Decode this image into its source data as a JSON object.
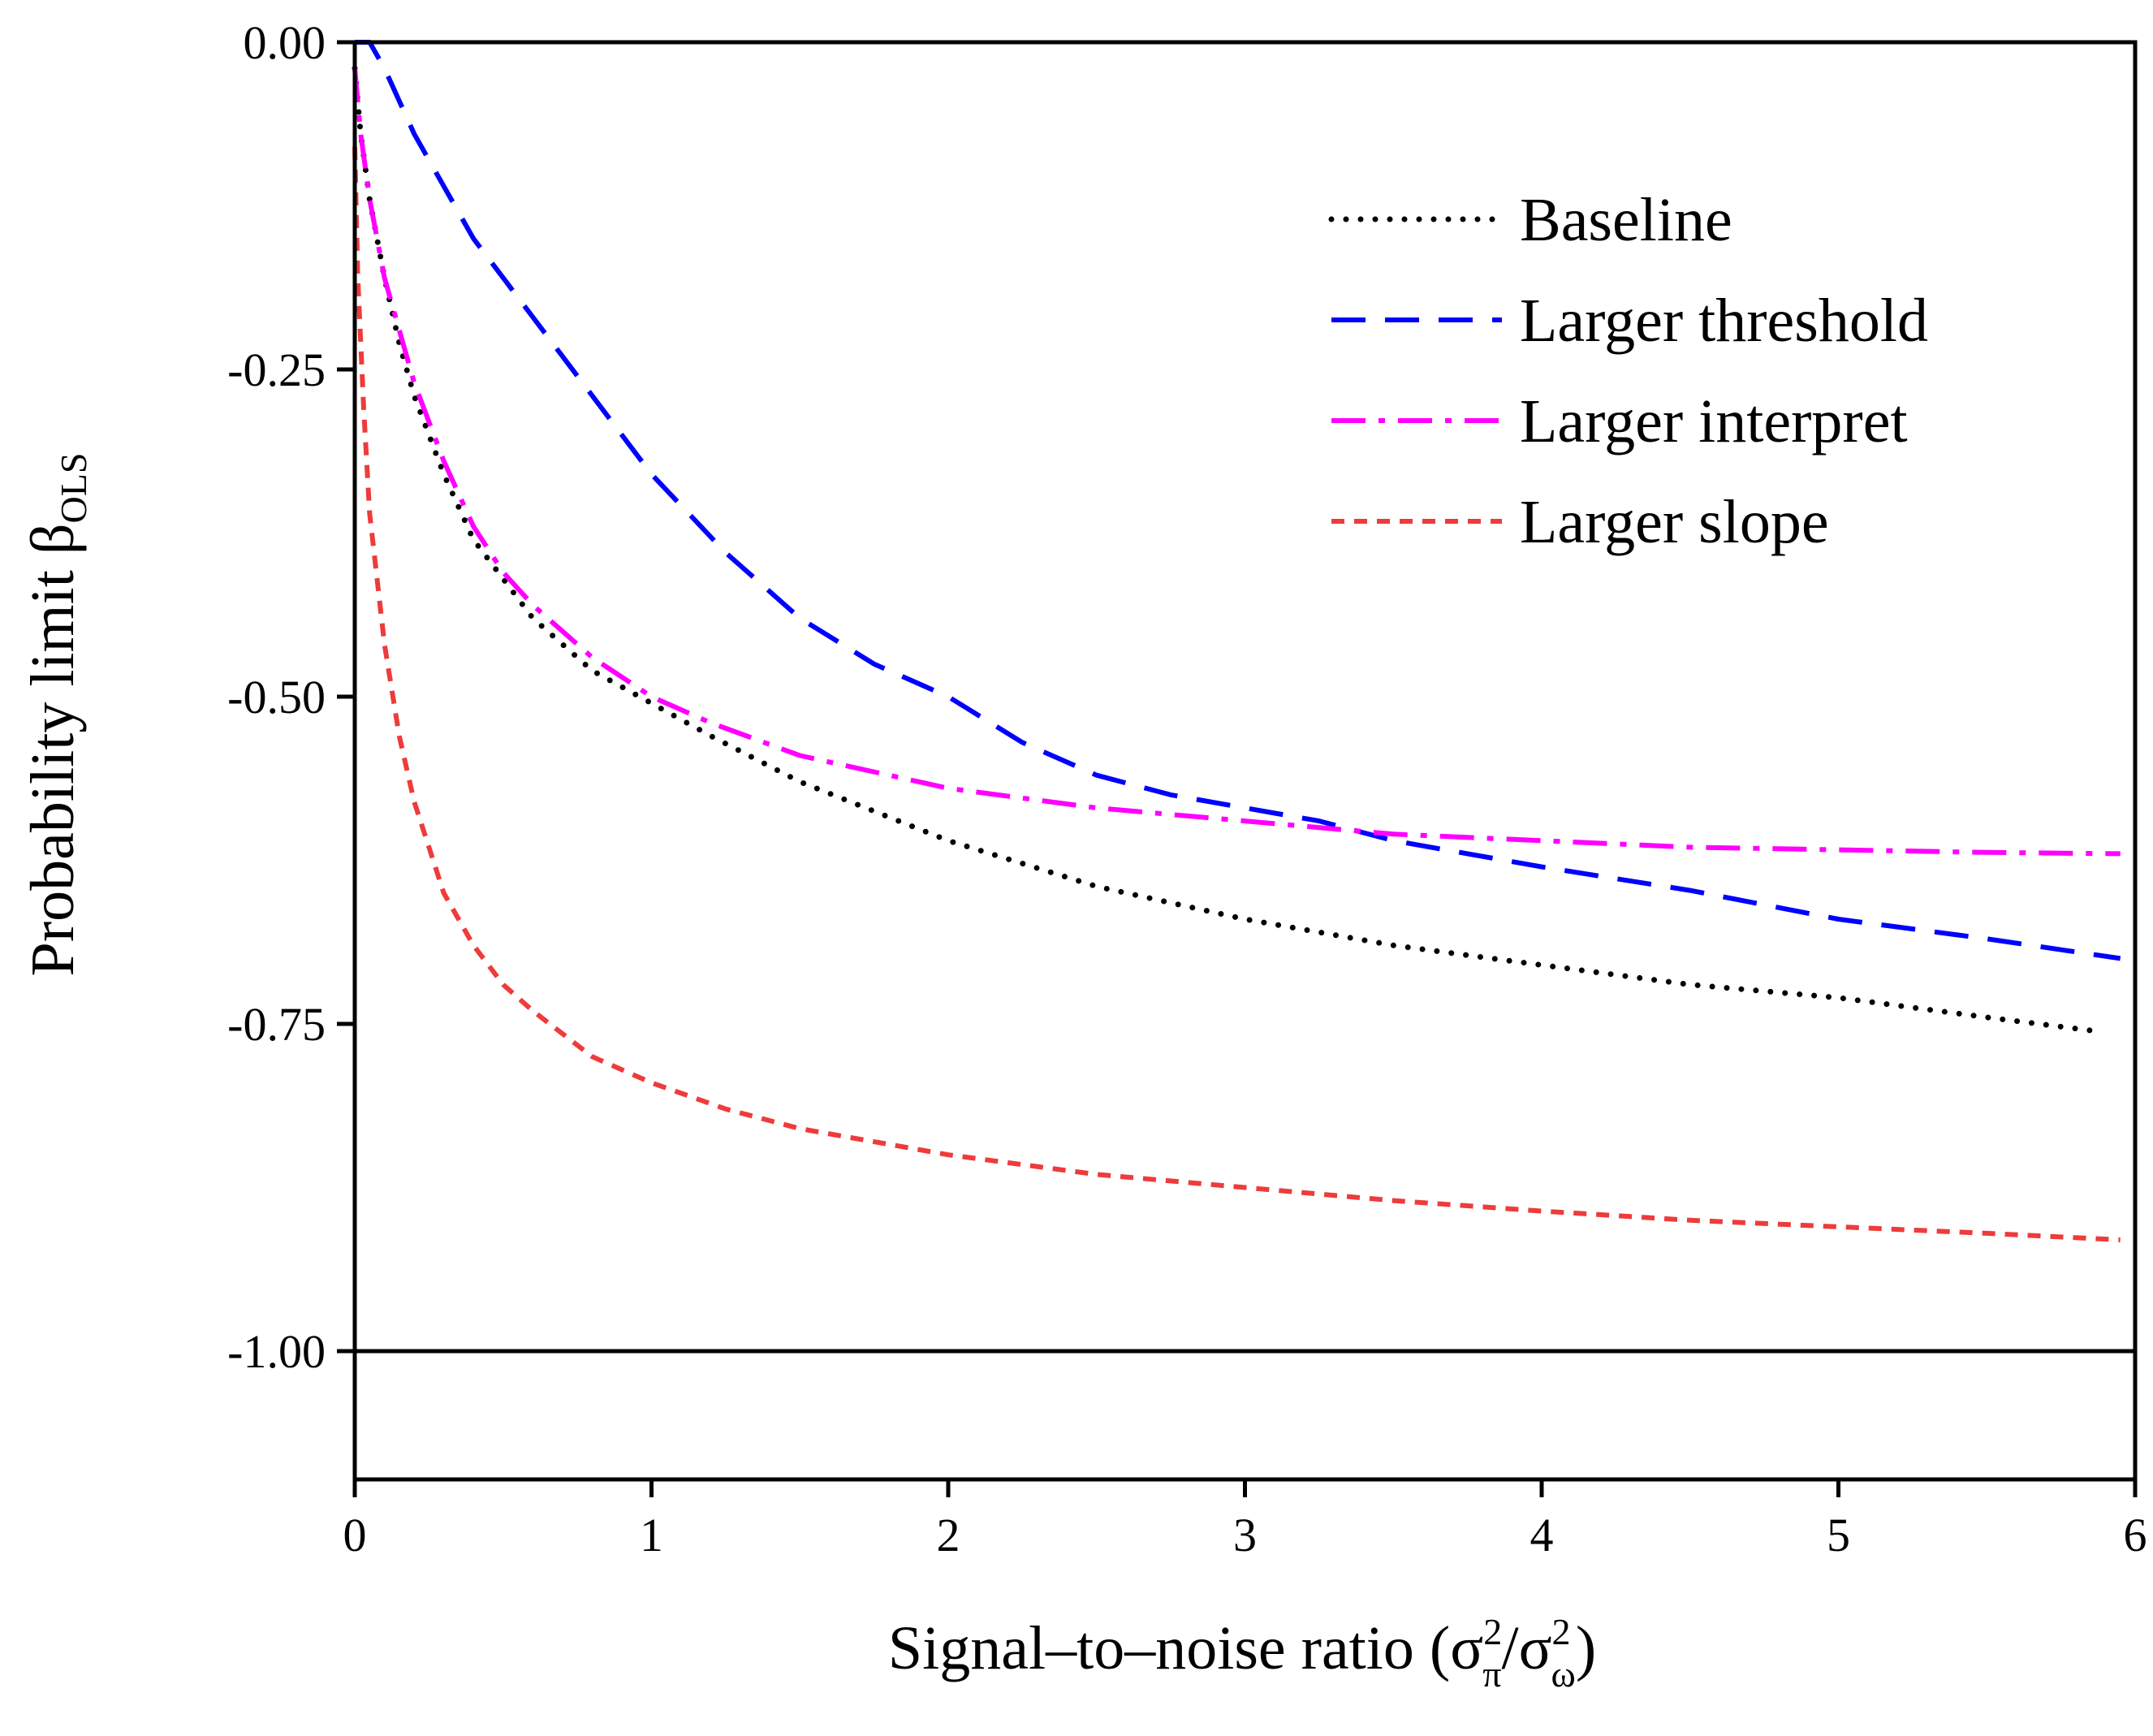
{
  "chart_data": {
    "type": "line",
    "title": "",
    "xlabel": {
      "main": "Signal–to–noise ratio (",
      "num_base": "σ",
      "num_sup": "2",
      "num_sub": "π",
      "slash": "/",
      "den_base": "σ",
      "den_sup": "2",
      "den_sub": "ω",
      "close": ")"
    },
    "ylabel": {
      "main": "Probability limit β",
      "sub": "OLS"
    },
    "xlim": [
      0,
      6
    ],
    "ylim": [
      -1.1,
      0
    ],
    "x_ticks": [
      0,
      1,
      2,
      3,
      4,
      5,
      6
    ],
    "x_tick_labels": [
      "0",
      "1",
      "2",
      "3",
      "4",
      "5",
      "6"
    ],
    "y_ticks": [
      0,
      -0.25,
      -0.5,
      -0.75,
      -1.0
    ],
    "y_tick_labels": [
      "0.00",
      "-0.25",
      "-0.50",
      "-0.75",
      "-1.00"
    ],
    "reference_line": -1.0,
    "legend_position": "top-right",
    "series": [
      {
        "name": "Baseline",
        "color": "#000000",
        "style": "dotted",
        "x": [
          0,
          0.02,
          0.05,
          0.1,
          0.15,
          0.2,
          0.3,
          0.4,
          0.5,
          0.6,
          0.7,
          0.8,
          1.0,
          1.2,
          1.5,
          2.0,
          2.5,
          3.0,
          3.5,
          4.0,
          4.5,
          5.0,
          5.5,
          5.85
        ],
        "values": [
          -0.02,
          -0.07,
          -0.12,
          -0.18,
          -0.23,
          -0.27,
          -0.33,
          -0.38,
          -0.41,
          -0.44,
          -0.46,
          -0.48,
          -0.505,
          -0.53,
          -0.565,
          -0.61,
          -0.645,
          -0.67,
          -0.69,
          -0.705,
          -0.72,
          -0.73,
          -0.745,
          -0.755
        ]
      },
      {
        "name": "Larger threshold",
        "color": "#0000ff",
        "style": "dashed",
        "x": [
          0,
          0.05,
          0.1,
          0.2,
          0.3,
          0.4,
          0.5,
          0.6,
          0.8,
          1.0,
          1.25,
          1.5,
          1.75,
          2.0,
          2.25,
          2.5,
          2.75,
          3.0,
          3.25,
          3.5,
          3.75,
          4.0,
          4.5,
          5.0,
          5.5,
          5.95
        ],
        "values": [
          0.0,
          0.0,
          -0.02,
          -0.07,
          -0.11,
          -0.15,
          -0.18,
          -0.21,
          -0.27,
          -0.33,
          -0.39,
          -0.44,
          -0.475,
          -0.5,
          -0.535,
          -0.56,
          -0.575,
          -0.585,
          -0.595,
          -0.61,
          -0.62,
          -0.63,
          -0.648,
          -0.67,
          -0.685,
          -0.7
        ]
      },
      {
        "name": "Larger interpret",
        "color": "#ff00ff",
        "style": "dash-dot",
        "x": [
          0,
          0.02,
          0.05,
          0.1,
          0.15,
          0.2,
          0.3,
          0.4,
          0.5,
          0.6,
          0.7,
          0.8,
          1.0,
          1.2,
          1.5,
          2.0,
          2.5,
          3.0,
          3.5,
          4.0,
          4.5,
          5.0,
          5.5,
          5.95
        ],
        "values": [
          -0.02,
          -0.07,
          -0.12,
          -0.18,
          -0.22,
          -0.26,
          -0.32,
          -0.37,
          -0.405,
          -0.43,
          -0.45,
          -0.47,
          -0.5,
          -0.52,
          -0.545,
          -0.57,
          -0.585,
          -0.595,
          -0.605,
          -0.61,
          -0.615,
          -0.617,
          -0.619,
          -0.62
        ]
      },
      {
        "name": "Larger slope",
        "color": "#ee3b3b",
        "style": "short-dash",
        "x": [
          0,
          0.01,
          0.03,
          0.05,
          0.1,
          0.15,
          0.2,
          0.3,
          0.4,
          0.5,
          0.6,
          0.8,
          1.0,
          1.25,
          1.5,
          2.0,
          2.5,
          3.0,
          3.5,
          4.0,
          4.5,
          5.0,
          5.5,
          5.95
        ],
        "values": [
          -0.08,
          -0.18,
          -0.28,
          -0.36,
          -0.46,
          -0.53,
          -0.58,
          -0.65,
          -0.69,
          -0.72,
          -0.74,
          -0.775,
          -0.795,
          -0.815,
          -0.83,
          -0.85,
          -0.865,
          -0.875,
          -0.885,
          -0.893,
          -0.9,
          -0.905,
          -0.91,
          -0.915
        ]
      }
    ]
  }
}
